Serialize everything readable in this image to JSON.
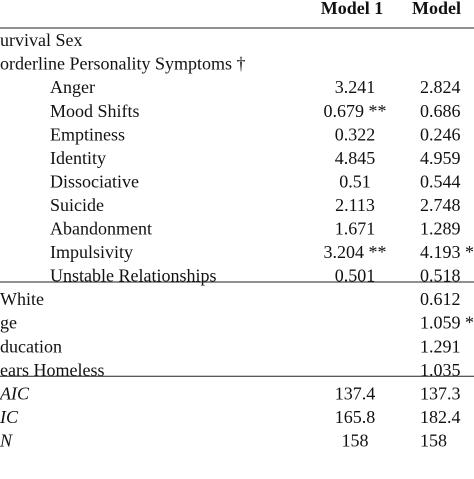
{
  "table": {
    "header": [
      "Model 1",
      "Model"
    ],
    "rows": [
      {
        "label": "urvival Sex",
        "indent": false
      },
      {
        "label": "orderline Personality Symptoms †",
        "indent": false
      },
      {
        "label": "Anger",
        "indent": true,
        "model1": "3.241",
        "model2": "2.824"
      },
      {
        "label": "Mood Shifts",
        "indent": true,
        "model1": "0.679 **",
        "model2": "0.686"
      },
      {
        "label": "Emptiness",
        "indent": true,
        "model1": "0.322",
        "model2": "0.246"
      },
      {
        "label": "Identity",
        "indent": true,
        "model1": "4.845",
        "model2": "4.959"
      },
      {
        "label": "Dissociative",
        "indent": true,
        "model1": "0.51",
        "model2": "0.544"
      },
      {
        "label": "Suicide",
        "indent": true,
        "model1": "2.113",
        "model2": "2.748"
      },
      {
        "label": "Abandonment",
        "indent": true,
        "model1": "1.671",
        "model2": "1.289"
      },
      {
        "label": "Impulsivity",
        "indent": true,
        "model1": "3.204 **",
        "model2": "4.193 *"
      },
      {
        "label": "Unstable Relationships",
        "indent": true,
        "model1": "0.501",
        "model2": "0.518"
      },
      {
        "label": "White",
        "indent": false,
        "model2": "0.612",
        "rule_above": true
      },
      {
        "label": "ge",
        "indent": false,
        "model2": "1.059 *"
      },
      {
        "label": "ducation",
        "indent": false,
        "model2": "1.291"
      },
      {
        "label": "ears Homeless",
        "indent": false,
        "model2": "1.035"
      },
      {
        "label": "AIC",
        "indent": false,
        "italic": true,
        "model1": "137.4",
        "model2": "137.3",
        "rule_above": true
      },
      {
        "label": "IC",
        "indent": false,
        "italic": true,
        "model1": "165.8",
        "model2": "182.4"
      },
      {
        "label": "N",
        "indent": false,
        "italic": true,
        "model1": "158",
        "model2": "158"
      }
    ]
  }
}
